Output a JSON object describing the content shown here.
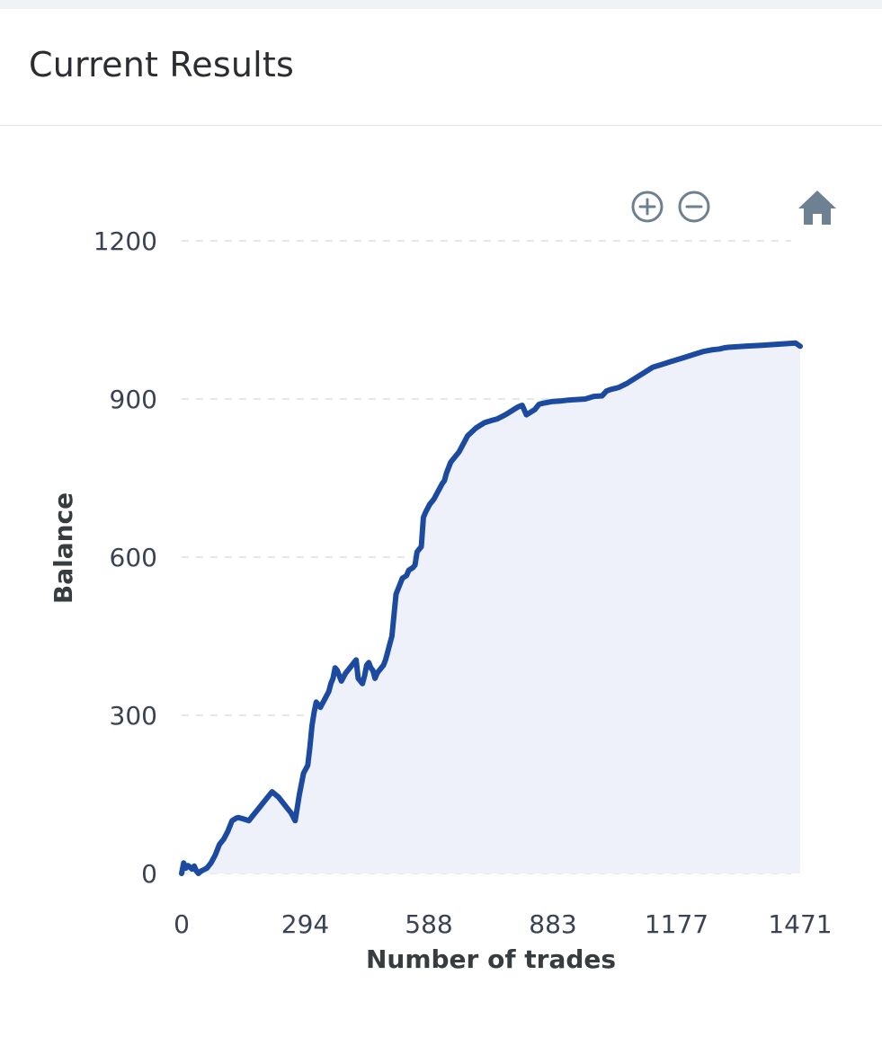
{
  "card": {
    "title": "Current Results"
  },
  "toolbar": {
    "zoom_in_icon": "plus-circle-icon",
    "zoom_out_icon": "minus-circle-icon",
    "reset_icon": "home-icon"
  },
  "colors": {
    "line": "#1b4aa0",
    "area": "#eef0fa",
    "grid": "#e3e6ec",
    "icon": "#6e8192",
    "tick_text": "#3a4255",
    "axis_title": "#373d3f"
  },
  "chart_data": {
    "type": "area",
    "xlabel": "Number of trades",
    "ylabel": "Balance",
    "xlim": [
      0,
      1471
    ],
    "ylim": [
      0,
      1200
    ],
    "x_ticks": [
      "0",
      "294",
      "588",
      "883",
      "1177",
      "1471"
    ],
    "y_ticks": [
      "0",
      "300",
      "600",
      "900",
      "1200"
    ],
    "grid": true,
    "legend": "none",
    "series": [
      {
        "x": [
          0,
          5,
          10,
          15,
          20,
          25,
          30,
          35,
          40,
          45,
          50,
          60,
          70,
          80,
          90,
          100,
          110,
          120,
          130,
          135,
          145,
          160,
          175,
          185,
          200,
          215,
          230,
          240,
          250,
          260,
          270,
          280,
          290,
          300,
          305,
          310,
          315,
          320,
          330,
          340,
          350,
          355,
          360,
          365,
          370,
          380,
          390,
          400,
          410,
          415,
          420,
          430,
          435,
          440,
          445,
          450,
          455,
          460,
          465,
          470,
          480,
          485,
          490,
          495,
          500,
          510,
          520,
          525,
          535,
          540,
          550,
          555,
          560,
          570,
          575,
          580,
          590,
          600,
          610,
          620,
          625,
          630,
          640,
          660,
          680,
          700,
          710,
          720,
          740,
          750,
          760,
          770,
          780,
          790,
          800,
          810,
          820,
          830,
          840,
          845,
          850,
          860,
          880,
          900,
          920,
          940,
          960,
          980,
          1000,
          1010,
          1020,
          1030,
          1040,
          1060,
          1080,
          1100,
          1120,
          1140,
          1160,
          1180,
          1200,
          1220,
          1240,
          1260,
          1280,
          1290,
          1300,
          1320,
          1340,
          1360,
          1380,
          1400,
          1420,
          1440,
          1460,
          1471
        ],
        "y": [
          0,
          20,
          10,
          15,
          12,
          8,
          14,
          5,
          0,
          4,
          6,
          10,
          20,
          35,
          55,
          65,
          80,
          100,
          105,
          106,
          104,
          100,
          115,
          125,
          140,
          155,
          145,
          135,
          125,
          115,
          100,
          150,
          190,
          205,
          240,
          280,
          305,
          325,
          315,
          330,
          345,
          360,
          370,
          390,
          385,
          365,
          380,
          390,
          400,
          405,
          370,
          360,
          375,
          395,
          400,
          390,
          385,
          370,
          380,
          385,
          395,
          405,
          420,
          435,
          450,
          530,
          550,
          560,
          565,
          575,
          580,
          585,
          610,
          620,
          675,
          685,
          700,
          710,
          725,
          740,
          745,
          760,
          780,
          800,
          830,
          845,
          850,
          855,
          860,
          862,
          866,
          870,
          875,
          880,
          885,
          888,
          870,
          875,
          880,
          885,
          890,
          892,
          895,
          896,
          898,
          899,
          900,
          905,
          906,
          915,
          918,
          920,
          922,
          930,
          940,
          950,
          960,
          965,
          970,
          975,
          980,
          985,
          990,
          993,
          995,
          997,
          998,
          999,
          1000,
          1001,
          1002,
          1003,
          1004,
          1005,
          1006,
          1000
        ]
      }
    ]
  }
}
